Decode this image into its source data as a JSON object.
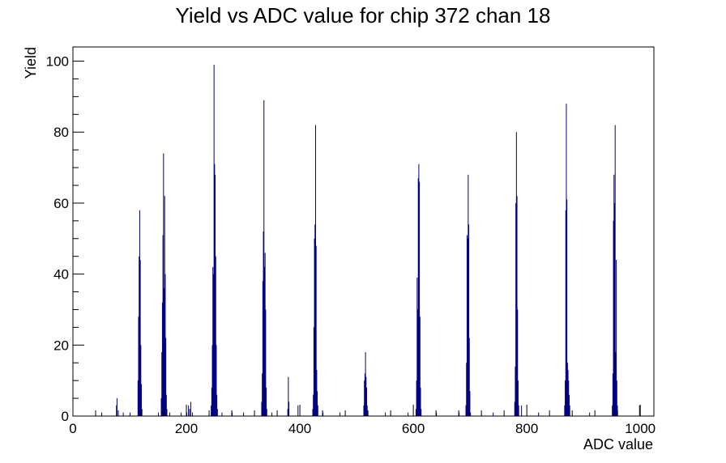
{
  "chart_data": {
    "type": "histogram",
    "title": "Yield vs ADC value for chip 372 chan 18",
    "xlabel": "ADC value",
    "ylabel": "Yield",
    "xlim": [
      0,
      1024
    ],
    "ylim": [
      0,
      104
    ],
    "x_ticks": [
      0,
      200,
      400,
      600,
      800,
      1000
    ],
    "y_ticks": [
      0,
      20,
      40,
      60,
      80,
      100
    ],
    "x_tick_labels": [
      "0",
      "200",
      "400",
      "600",
      "800",
      "1000"
    ],
    "y_tick_labels": [
      "0",
      "20",
      "40",
      "60",
      "80",
      "100"
    ],
    "line_color": "#000080",
    "grid": false,
    "legend": "none",
    "bins": [
      {
        "x": 50,
        "y": 1
      },
      {
        "x": 76,
        "y": 3
      },
      {
        "x": 77,
        "y": 5
      },
      {
        "x": 88,
        "y": 1
      },
      {
        "x": 100,
        "y": 1
      },
      {
        "x": 114,
        "y": 10
      },
      {
        "x": 115,
        "y": 28
      },
      {
        "x": 116,
        "y": 45
      },
      {
        "x": 117,
        "y": 58
      },
      {
        "x": 118,
        "y": 44
      },
      {
        "x": 119,
        "y": 20
      },
      {
        "x": 120,
        "y": 9
      },
      {
        "x": 121,
        "y": 2
      },
      {
        "x": 150,
        "y": 1
      },
      {
        "x": 155,
        "y": 5
      },
      {
        "x": 156,
        "y": 18
      },
      {
        "x": 157,
        "y": 32
      },
      {
        "x": 158,
        "y": 51
      },
      {
        "x": 159,
        "y": 74
      },
      {
        "x": 160,
        "y": 36
      },
      {
        "x": 161,
        "y": 62
      },
      {
        "x": 162,
        "y": 40
      },
      {
        "x": 163,
        "y": 22
      },
      {
        "x": 164,
        "y": 6
      },
      {
        "x": 165,
        "y": 2
      },
      {
        "x": 170,
        "y": 1
      },
      {
        "x": 190,
        "y": 1
      },
      {
        "x": 200,
        "y": 1
      },
      {
        "x": 203,
        "y": 3
      },
      {
        "x": 205,
        "y": 2
      },
      {
        "x": 207,
        "y": 4
      },
      {
        "x": 210,
        "y": 1
      },
      {
        "x": 243,
        "y": 3
      },
      {
        "x": 244,
        "y": 8
      },
      {
        "x": 245,
        "y": 20
      },
      {
        "x": 246,
        "y": 42
      },
      {
        "x": 247,
        "y": 40
      },
      {
        "x": 248,
        "y": 99
      },
      {
        "x": 249,
        "y": 71
      },
      {
        "x": 250,
        "y": 68
      },
      {
        "x": 251,
        "y": 45
      },
      {
        "x": 252,
        "y": 20
      },
      {
        "x": 253,
        "y": 6
      },
      {
        "x": 254,
        "y": 2
      },
      {
        "x": 262,
        "y": 1
      },
      {
        "x": 280,
        "y": 1
      },
      {
        "x": 300,
        "y": 1
      },
      {
        "x": 332,
        "y": 4
      },
      {
        "x": 333,
        "y": 12
      },
      {
        "x": 334,
        "y": 38
      },
      {
        "x": 335,
        "y": 52
      },
      {
        "x": 336,
        "y": 89
      },
      {
        "x": 337,
        "y": 42
      },
      {
        "x": 338,
        "y": 46
      },
      {
        "x": 339,
        "y": 30
      },
      {
        "x": 340,
        "y": 8
      },
      {
        "x": 341,
        "y": 2
      },
      {
        "x": 350,
        "y": 1
      },
      {
        "x": 378,
        "y": 2
      },
      {
        "x": 379,
        "y": 11
      },
      {
        "x": 380,
        "y": 4
      },
      {
        "x": 396,
        "y": 3
      },
      {
        "x": 422,
        "y": 2
      },
      {
        "x": 423,
        "y": 6
      },
      {
        "x": 424,
        "y": 25
      },
      {
        "x": 425,
        "y": 50
      },
      {
        "x": 426,
        "y": 54
      },
      {
        "x": 427,
        "y": 82
      },
      {
        "x": 428,
        "y": 48
      },
      {
        "x": 429,
        "y": 13
      },
      {
        "x": 430,
        "y": 7
      },
      {
        "x": 431,
        "y": 3
      },
      {
        "x": 440,
        "y": 1
      },
      {
        "x": 470,
        "y": 1
      },
      {
        "x": 512,
        "y": 3
      },
      {
        "x": 513,
        "y": 10
      },
      {
        "x": 514,
        "y": 12
      },
      {
        "x": 515,
        "y": 18
      },
      {
        "x": 516,
        "y": 11
      },
      {
        "x": 517,
        "y": 8
      },
      {
        "x": 518,
        "y": 3
      },
      {
        "x": 550,
        "y": 1
      },
      {
        "x": 590,
        "y": 1
      },
      {
        "x": 604,
        "y": 2
      },
      {
        "x": 605,
        "y": 10
      },
      {
        "x": 606,
        "y": 39
      },
      {
        "x": 607,
        "y": 30
      },
      {
        "x": 608,
        "y": 67
      },
      {
        "x": 609,
        "y": 71
      },
      {
        "x": 610,
        "y": 66
      },
      {
        "x": 611,
        "y": 28
      },
      {
        "x": 612,
        "y": 8
      },
      {
        "x": 613,
        "y": 2
      },
      {
        "x": 640,
        "y": 1
      },
      {
        "x": 680,
        "y": 1
      },
      {
        "x": 692,
        "y": 3
      },
      {
        "x": 693,
        "y": 15
      },
      {
        "x": 694,
        "y": 51
      },
      {
        "x": 695,
        "y": 50
      },
      {
        "x": 696,
        "y": 68
      },
      {
        "x": 697,
        "y": 54
      },
      {
        "x": 698,
        "y": 22
      },
      {
        "x": 699,
        "y": 7
      },
      {
        "x": 700,
        "y": 1
      },
      {
        "x": 740,
        "y": 1
      },
      {
        "x": 778,
        "y": 4
      },
      {
        "x": 779,
        "y": 14
      },
      {
        "x": 780,
        "y": 60
      },
      {
        "x": 781,
        "y": 80
      },
      {
        "x": 782,
        "y": 62
      },
      {
        "x": 783,
        "y": 30
      },
      {
        "x": 784,
        "y": 10
      },
      {
        "x": 785,
        "y": 3
      },
      {
        "x": 790,
        "y": 3
      },
      {
        "x": 820,
        "y": 1
      },
      {
        "x": 866,
        "y": 3
      },
      {
        "x": 867,
        "y": 10
      },
      {
        "x": 868,
        "y": 58
      },
      {
        "x": 869,
        "y": 88
      },
      {
        "x": 870,
        "y": 61
      },
      {
        "x": 871,
        "y": 15
      },
      {
        "x": 872,
        "y": 13
      },
      {
        "x": 873,
        "y": 10
      },
      {
        "x": 874,
        "y": 6
      },
      {
        "x": 875,
        "y": 3
      },
      {
        "x": 910,
        "y": 1
      },
      {
        "x": 950,
        "y": 3
      },
      {
        "x": 951,
        "y": 12
      },
      {
        "x": 952,
        "y": 55
      },
      {
        "x": 953,
        "y": 68
      },
      {
        "x": 954,
        "y": 60
      },
      {
        "x": 955,
        "y": 82
      },
      {
        "x": 956,
        "y": 18
      },
      {
        "x": 957,
        "y": 44
      },
      {
        "x": 958,
        "y": 10
      },
      {
        "x": 959,
        "y": 3
      },
      {
        "x": 998,
        "y": 3
      }
    ]
  }
}
